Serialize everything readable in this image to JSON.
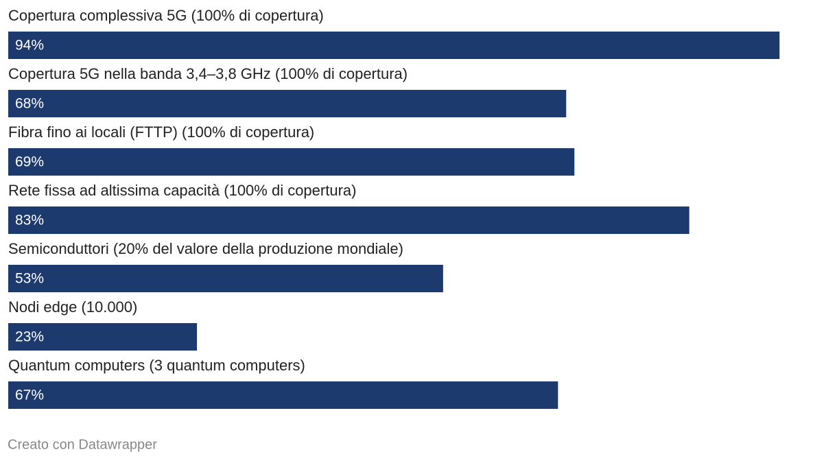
{
  "chart_data": {
    "type": "bar",
    "orientation": "horizontal",
    "categories": [
      "Copertura complessiva 5G (100% di copertura)",
      "Copertura 5G nella banda 3,4–3,8 GHz (100% di copertura)",
      "Fibra fino ai locali (FTTP) (100% di copertura)",
      "Rete fissa ad altissima capacità (100% di copertura)",
      "Semiconduttori (20% del valore della produzione mondiale)",
      "Nodi edge (10.000)",
      "Quantum computers (3 quantum computers)"
    ],
    "values": [
      94,
      68,
      69,
      83,
      53,
      23,
      67
    ],
    "value_labels": [
      "94%",
      "68%",
      "69%",
      "83%",
      "53%",
      "23%",
      "67%"
    ],
    "color": "#1d3a6e",
    "xlim": [
      0,
      100
    ],
    "footer": "Creato con Datawrapper"
  }
}
